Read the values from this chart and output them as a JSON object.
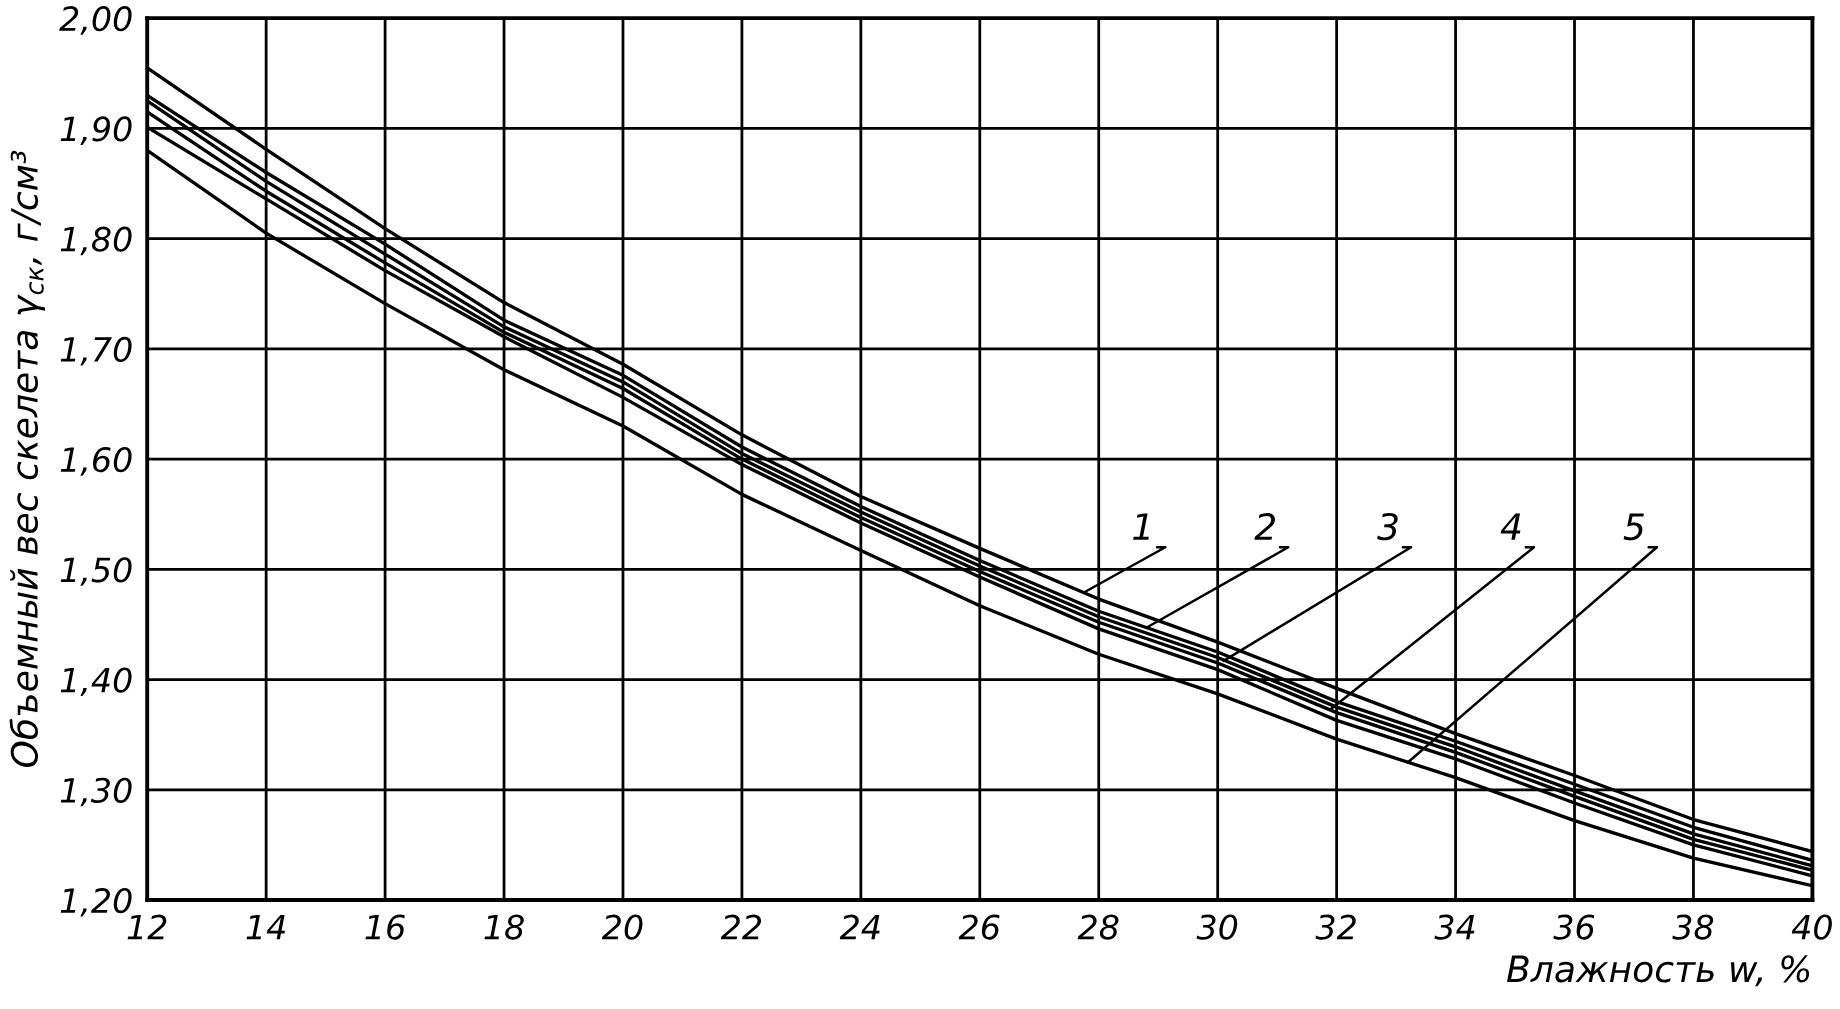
{
  "chart_data": {
    "type": "line",
    "xlabel": "Влажность w, %",
    "ylabel": "Объемный вес скелета γ$_{ск}$, г/см³",
    "x": [
      12,
      14,
      16,
      18,
      20,
      22,
      24,
      26,
      28,
      30,
      32,
      34,
      36,
      38,
      40
    ],
    "xlim": [
      12,
      40
    ],
    "xticks": [
      12,
      14,
      16,
      18,
      20,
      22,
      24,
      26,
      28,
      30,
      32,
      34,
      36,
      38,
      40
    ],
    "ylim": [
      1.2,
      2.0
    ],
    "yticks": [
      {
        "value": 1.2,
        "label": "1,20"
      },
      {
        "value": 1.3,
        "label": "1,30"
      },
      {
        "value": 1.4,
        "label": "1,40"
      },
      {
        "value": 1.5,
        "label": "1,50"
      },
      {
        "value": 1.6,
        "label": "1,60"
      },
      {
        "value": 1.7,
        "label": "1,70"
      },
      {
        "value": 1.8,
        "label": "1,80"
      },
      {
        "value": 1.9,
        "label": "1,90"
      },
      {
        "value": 2.0,
        "label": "2,00"
      }
    ],
    "grid": true,
    "series": [
      {
        "color": "#000000",
        "values": [
          1.955,
          1.881,
          1.809,
          1.742,
          1.686,
          1.622,
          1.566,
          1.519,
          1.473,
          1.434,
          1.392,
          1.351,
          1.313,
          1.273,
          1.244
        ]
      },
      {
        "color": "#000000",
        "values": [
          1.93,
          1.86,
          1.795,
          1.726,
          1.676,
          1.611,
          1.557,
          1.508,
          1.462,
          1.425,
          1.38,
          1.344,
          1.305,
          1.266,
          1.236
        ]
      },
      {
        "color": "#000000",
        "values": [
          1.925,
          1.852,
          1.786,
          1.72,
          1.67,
          1.605,
          1.552,
          1.503,
          1.457,
          1.42,
          1.375,
          1.339,
          1.299,
          1.26,
          1.231
        ]
      },
      {
        "color": "#000000",
        "values": [
          1.915,
          1.843,
          1.778,
          1.715,
          1.664,
          1.6,
          1.547,
          1.498,
          1.452,
          1.415,
          1.37,
          1.334,
          1.294,
          1.255,
          1.227
        ]
      },
      {
        "color": "#000000",
        "values": [
          1.901,
          1.836,
          1.771,
          1.711,
          1.656,
          1.595,
          1.542,
          1.493,
          1.446,
          1.409,
          1.363,
          1.328,
          1.288,
          1.25,
          1.222
        ]
      },
      {
        "color": "#000000",
        "values": [
          1.88,
          1.805,
          1.741,
          1.681,
          1.63,
          1.568,
          1.517,
          1.467,
          1.423,
          1.387,
          1.346,
          1.311,
          1.272,
          1.238,
          1.213
        ]
      }
    ],
    "annotations": [
      {
        "text": "1",
        "x": 27.75,
        "y": 1.479
      },
      {
        "text": "2",
        "x": 28.8,
        "y": 1.447
      },
      {
        "text": "3",
        "x": 30.1,
        "y": 1.417
      },
      {
        "text": "4",
        "x": 31.9,
        "y": 1.373
      },
      {
        "text": "5",
        "x": 33.2,
        "y": 1.325
      }
    ]
  }
}
